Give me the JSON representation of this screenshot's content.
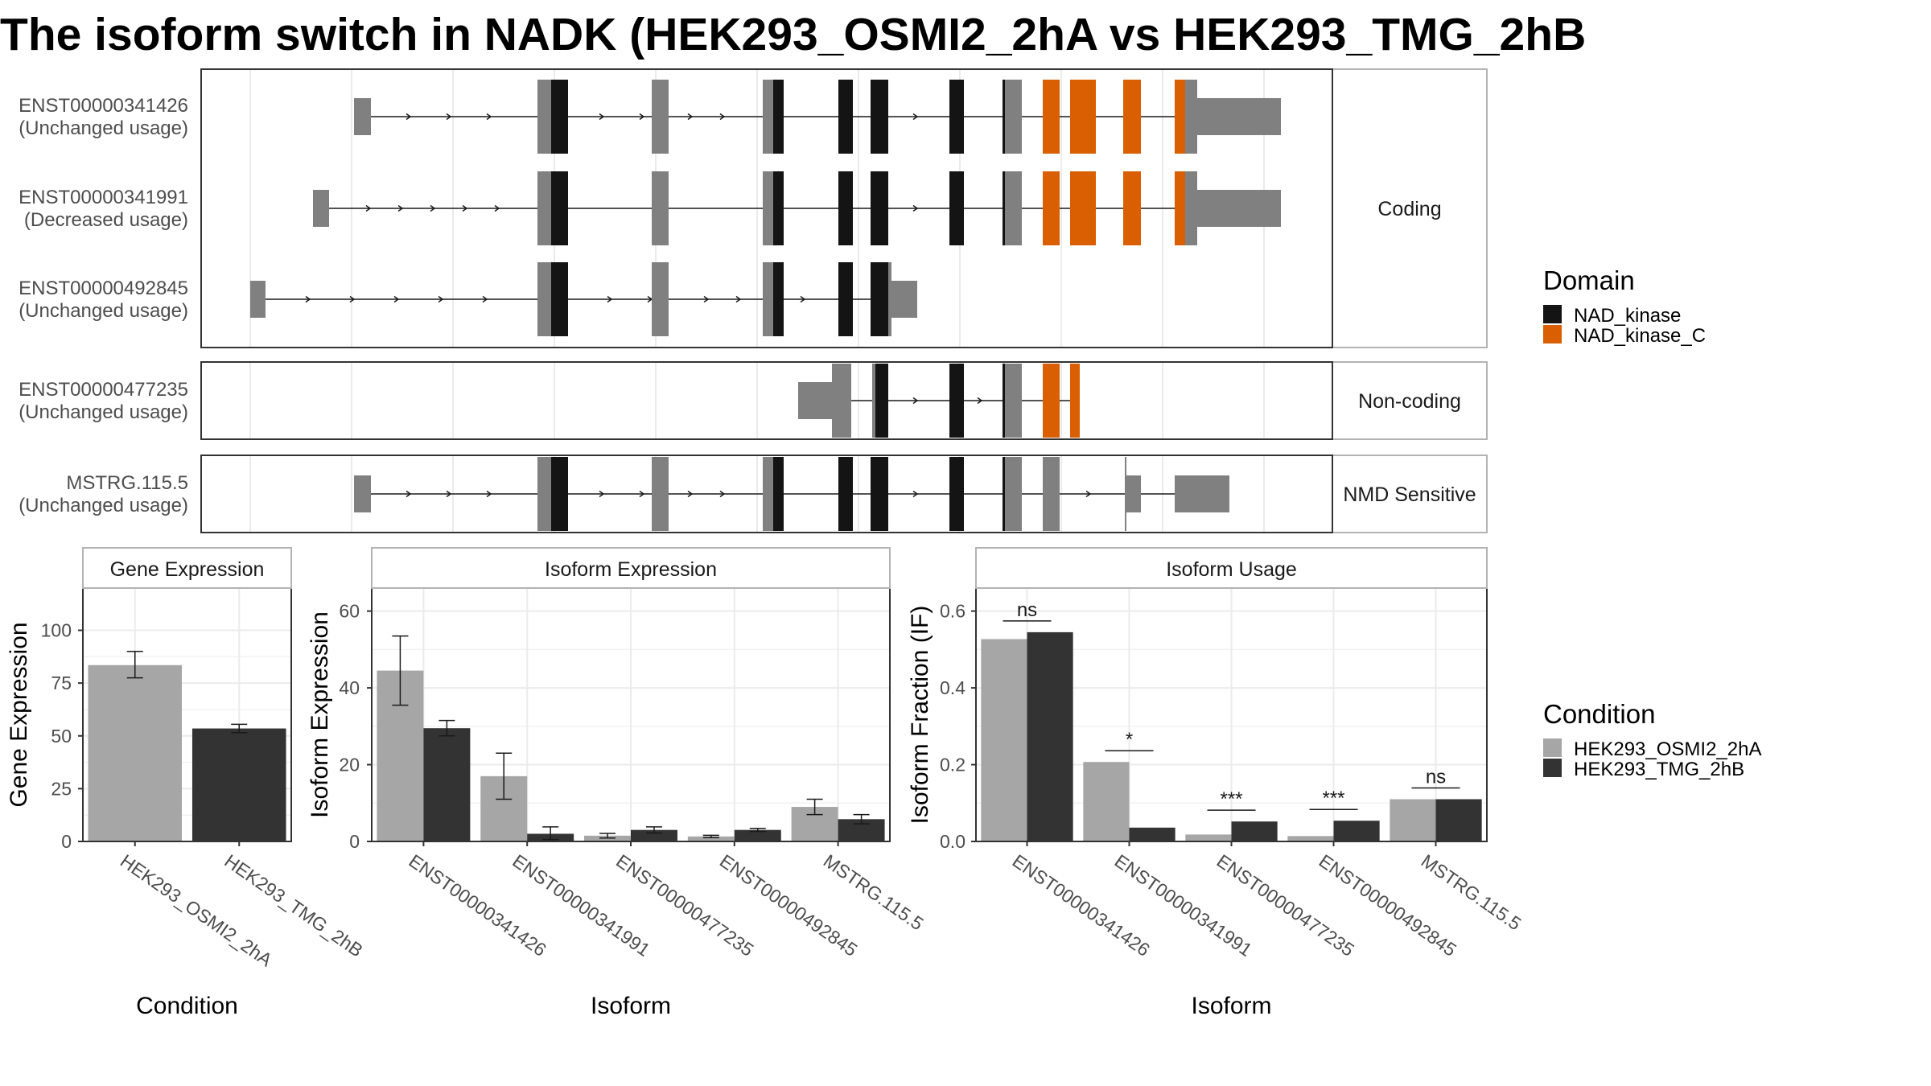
{
  "title": "The isoform switch in NADK (HEK293_OSMI2_2hA vs HEK293_TMG_2hB",
  "colors": {
    "exon": "#808080",
    "nad_kinase": "#141414",
    "nad_kinase_c": "#d95f02",
    "condition_a": "#a6a6a6",
    "condition_b": "#333333"
  },
  "structure": {
    "facets": [
      {
        "label": "Coding",
        "transcripts": [
          0,
          1,
          2
        ]
      },
      {
        "label": "Non-coding",
        "transcripts": [
          3
        ]
      },
      {
        "label": "NMD Sensitive",
        "transcripts": [
          4
        ]
      }
    ],
    "transcripts": [
      {
        "id": "ENST00000341426",
        "usage": "(Unchanged usage)"
      },
      {
        "id": "ENST00000341991",
        "usage": "(Decreased usage)"
      },
      {
        "id": "ENST00000492845",
        "usage": "(Unchanged usage)"
      },
      {
        "id": "ENST00000477235",
        "usage": "(Unchanged usage)"
      },
      {
        "id": "MSTRG.115.5",
        "usage": "(Unchanged usage)"
      }
    ],
    "legend": {
      "title": "Domain",
      "items": [
        {
          "label": "NAD_kinase",
          "color": "#141414"
        },
        {
          "label": "NAD_kinase_C",
          "color": "#d95f02"
        }
      ]
    }
  },
  "chart_data": [
    {
      "type": "bar",
      "panel": "Gene Expression",
      "xlabel": "Condition",
      "ylabel": "Gene Expression",
      "categories": [
        "HEK293_OSMI2_2hA",
        "HEK293_TMG_2hB"
      ],
      "values": [
        83.5,
        53.5
      ],
      "error": [
        [
          77.5,
          90
        ],
        [
          51.5,
          55.5
        ]
      ],
      "ylim": [
        0,
        120
      ],
      "yticks": [
        0,
        25,
        50,
        75,
        100
      ]
    },
    {
      "type": "bar",
      "panel": "Isoform Expression",
      "xlabel": "Isoform",
      "ylabel": "Isoform Expression",
      "categories": [
        "ENST00000341426",
        "ENST00000341991",
        "ENST00000477235",
        "ENST00000492845",
        "MSTRG.115.5"
      ],
      "series": [
        {
          "name": "HEK293_OSMI2_2hA",
          "values": [
            44.5,
            17.0,
            1.5,
            1.3,
            9.0
          ],
          "error": [
            [
              35.5,
              53.5
            ],
            [
              11.0,
              23.0
            ],
            [
              0.9,
              2.1
            ],
            [
              1.0,
              1.6
            ],
            [
              7.0,
              11.0
            ]
          ]
        },
        {
          "name": "HEK293_TMG_2hB",
          "values": [
            29.5,
            2.0,
            3.0,
            3.0,
            5.8
          ],
          "error": [
            [
              27.5,
              31.5
            ],
            [
              0.5,
              3.8
            ],
            [
              2.2,
              3.8
            ],
            [
              2.6,
              3.4
            ],
            [
              4.6,
              7.0
            ]
          ]
        }
      ],
      "ylim": [
        0,
        66
      ],
      "yticks": [
        0,
        20,
        40,
        60
      ]
    },
    {
      "type": "bar",
      "panel": "Isoform Usage",
      "xlabel": "Isoform",
      "ylabel": "Isoform Fraction (IF)",
      "categories": [
        "ENST00000341426",
        "ENST00000341991",
        "ENST00000477235",
        "ENST00000492845",
        "MSTRG.115.5"
      ],
      "series": [
        {
          "name": "HEK293_OSMI2_2hA",
          "values": [
            0.527,
            0.207,
            0.018,
            0.014,
            0.11
          ]
        },
        {
          "name": "HEK293_TMG_2hB",
          "values": [
            0.545,
            0.036,
            0.052,
            0.054,
            0.11
          ]
        }
      ],
      "significance": [
        "ns",
        "*",
        "***",
        "***",
        "ns"
      ],
      "ylim": [
        0,
        0.66
      ],
      "yticks": [
        0.0,
        0.2,
        0.4,
        0.6
      ]
    }
  ],
  "condition_legend": {
    "title": "Condition",
    "items": [
      {
        "label": "HEK293_OSMI2_2hA",
        "color": "#a6a6a6"
      },
      {
        "label": "HEK293_TMG_2hB",
        "color": "#333333"
      }
    ]
  }
}
